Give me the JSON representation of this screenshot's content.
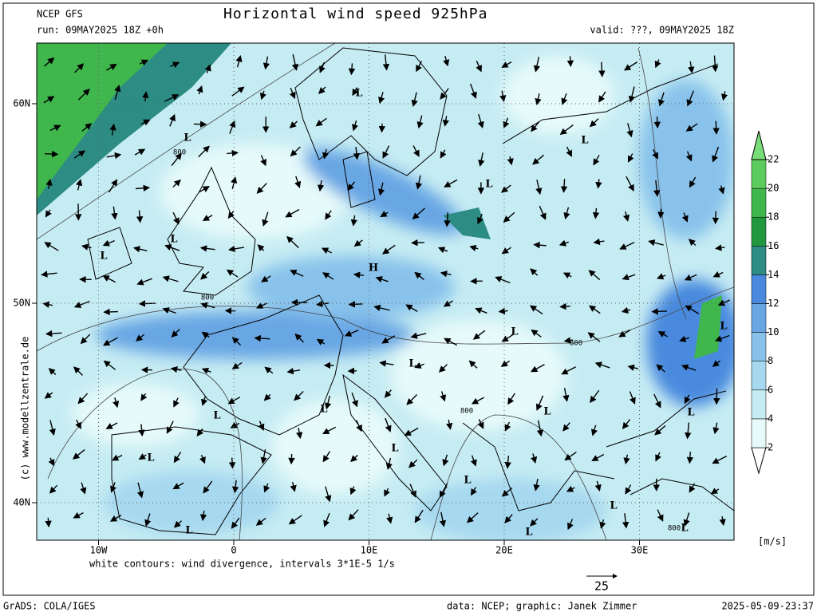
{
  "header": {
    "model": "NCEP GFS",
    "title": "Horizontal wind speed 925hPa",
    "run": "run: 09MAY2025 18Z +0h",
    "valid": "valid: ???, 09MAY2025 18Z"
  },
  "map": {
    "lat_ticks": [
      {
        "value": 60,
        "label": "60N"
      },
      {
        "value": 50,
        "label": "50N"
      },
      {
        "value": 40,
        "label": "40N"
      }
    ],
    "lon_ticks": [
      {
        "value": -10,
        "label": "10W"
      },
      0,
      {
        "value": 10,
        "label": "10E"
      },
      {
        "value": 20,
        "label": "20E"
      },
      {
        "value": 30,
        "label": "30E"
      }
    ],
    "pressure_centers": [
      "L",
      "L",
      "L",
      "L",
      "L",
      "L",
      "H",
      "L",
      "L",
      "L",
      "L",
      "L",
      "L",
      "L",
      "L",
      "L",
      "L",
      "L",
      "L",
      "L",
      "L"
    ],
    "isobar_labels": [
      "800",
      "800",
      "800",
      "800",
      "800"
    ]
  },
  "colorbar": {
    "ticks": [
      2,
      4,
      6,
      8,
      10,
      12,
      14,
      16,
      18,
      20,
      22
    ],
    "unit": "[m/s]",
    "colors": [
      "#ffffff",
      "#e6fafa",
      "#c6ecf3",
      "#a6d8ef",
      "#88c2eb",
      "#68a6e4",
      "#4a8ade",
      "#2d8c84",
      "#21983e",
      "#3fb74c",
      "#5ccc5e",
      "#78dd78"
    ]
  },
  "side_text": "(c) www.modellzentrale.de",
  "note": "white contours: wind divergence, intervals 3*1E-5 1/s",
  "scale_vector": 25,
  "footer": {
    "software": "GrADS: COLA/IGES",
    "credit": "data: NCEP; graphic: Janek Zimmer",
    "timestamp": "2025-05-09-23:37"
  }
}
